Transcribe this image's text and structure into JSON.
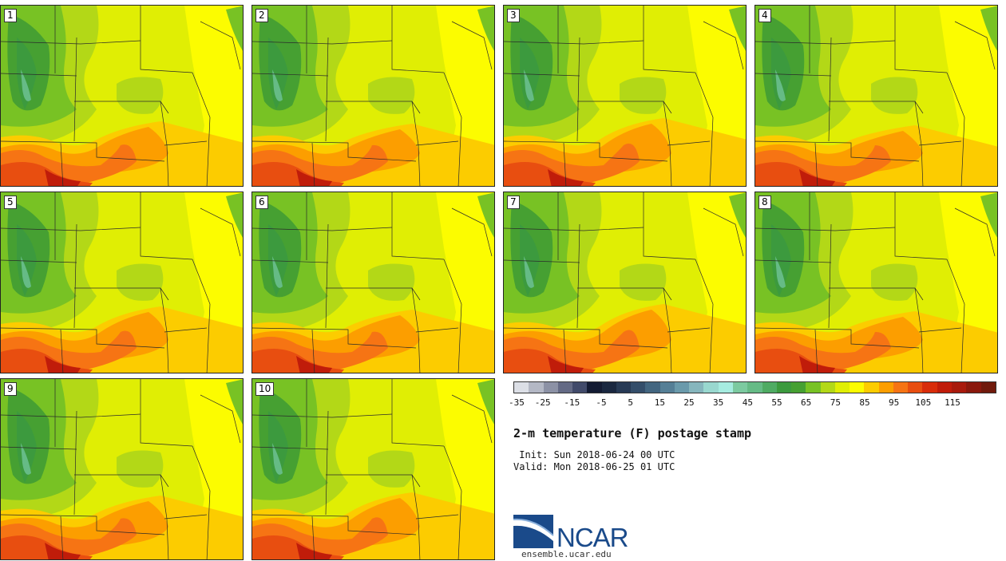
{
  "product": {
    "title": "2-m temperature (F) postage stamp",
    "init": " Init: Sun 2018-06-24 00 UTC",
    "valid": "Valid: Mon 2018-06-25 01 UTC"
  },
  "members": [
    "1",
    "2",
    "3",
    "4",
    "5",
    "6",
    "7",
    "8",
    "9",
    "10"
  ],
  "colorbar": {
    "ticks": [
      "-35",
      "-25",
      "-15",
      "-5",
      "5",
      "15",
      "25",
      "35",
      "45",
      "55",
      "65",
      "75",
      "85",
      "95",
      "105",
      "115"
    ],
    "colors": [
      "#dcdfe6",
      "#b4b8c5",
      "#8c91a5",
      "#646a85",
      "#414a6a",
      "#131b33",
      "#1a2840",
      "#273a55",
      "#344e6a",
      "#436680",
      "#557f96",
      "#6a9aab",
      "#86b6bd",
      "#99d8cf",
      "#a6ece0",
      "#7ccaa0",
      "#66bb86",
      "#4fab63",
      "#3c9a3e",
      "#46a032",
      "#78c224",
      "#b3d817",
      "#e0ee04",
      "#fcfc00",
      "#fccc00",
      "#fc9e00",
      "#f67414",
      "#e84e10",
      "#d82c0a",
      "#c01c0a",
      "#a81a0c",
      "#8a180c",
      "#701a0c"
    ]
  },
  "logo": {
    "name": "NCAR",
    "url": "ensemble.ucar.edu"
  }
}
